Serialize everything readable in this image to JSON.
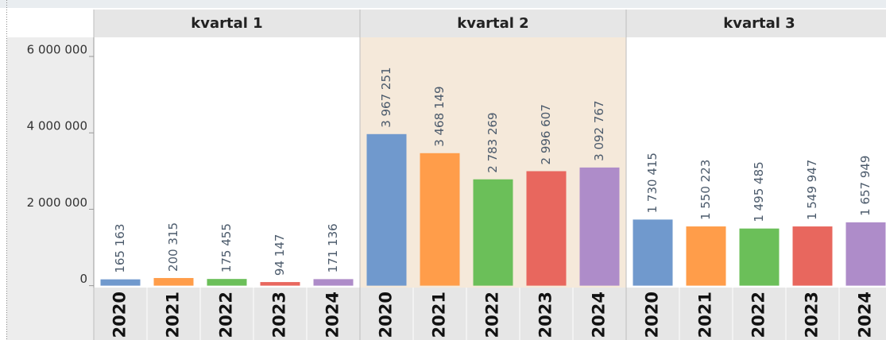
{
  "chart_data": {
    "type": "bar",
    "categories": [
      "2020",
      "2021",
      "2022",
      "2023",
      "2024"
    ],
    "colors": [
      "#7099cd",
      "#ff9d4a",
      "#6bbf59",
      "#e8675e",
      "#ae8cc9"
    ],
    "panels": [
      {
        "name": "kvartal 1",
        "values": [
          165163,
          200315,
          175455,
          94147,
          171136
        ],
        "value_labels": [
          "165 163",
          "200 315",
          "175 455",
          "94 147",
          "171 136"
        ]
      },
      {
        "name": "kvartal 2",
        "values": [
          3967251,
          3468149,
          2783269,
          2996607,
          3092767
        ],
        "value_labels": [
          "3 967 251",
          "3 468 149",
          "2 783 269",
          "2 996 607",
          "3 092 767"
        ]
      },
      {
        "name": "kvartal 3",
        "values": [
          1730415,
          1550223,
          1495485,
          1549947,
          1657949
        ],
        "value_labels": [
          "1 730 415",
          "1 550 223",
          "1 495 485",
          "1 549 947",
          "1 657 949"
        ]
      }
    ],
    "highlighted_panel": 1,
    "ylim": [
      -50000,
      6500000
    ],
    "yticks": [
      0,
      {
        "value": 2000000,
        "label": "2 000 000"
      },
      {
        "value": 4000000,
        "label": "4 000 000"
      },
      {
        "value": 6000000,
        "label": "6 000 000"
      }
    ]
  }
}
